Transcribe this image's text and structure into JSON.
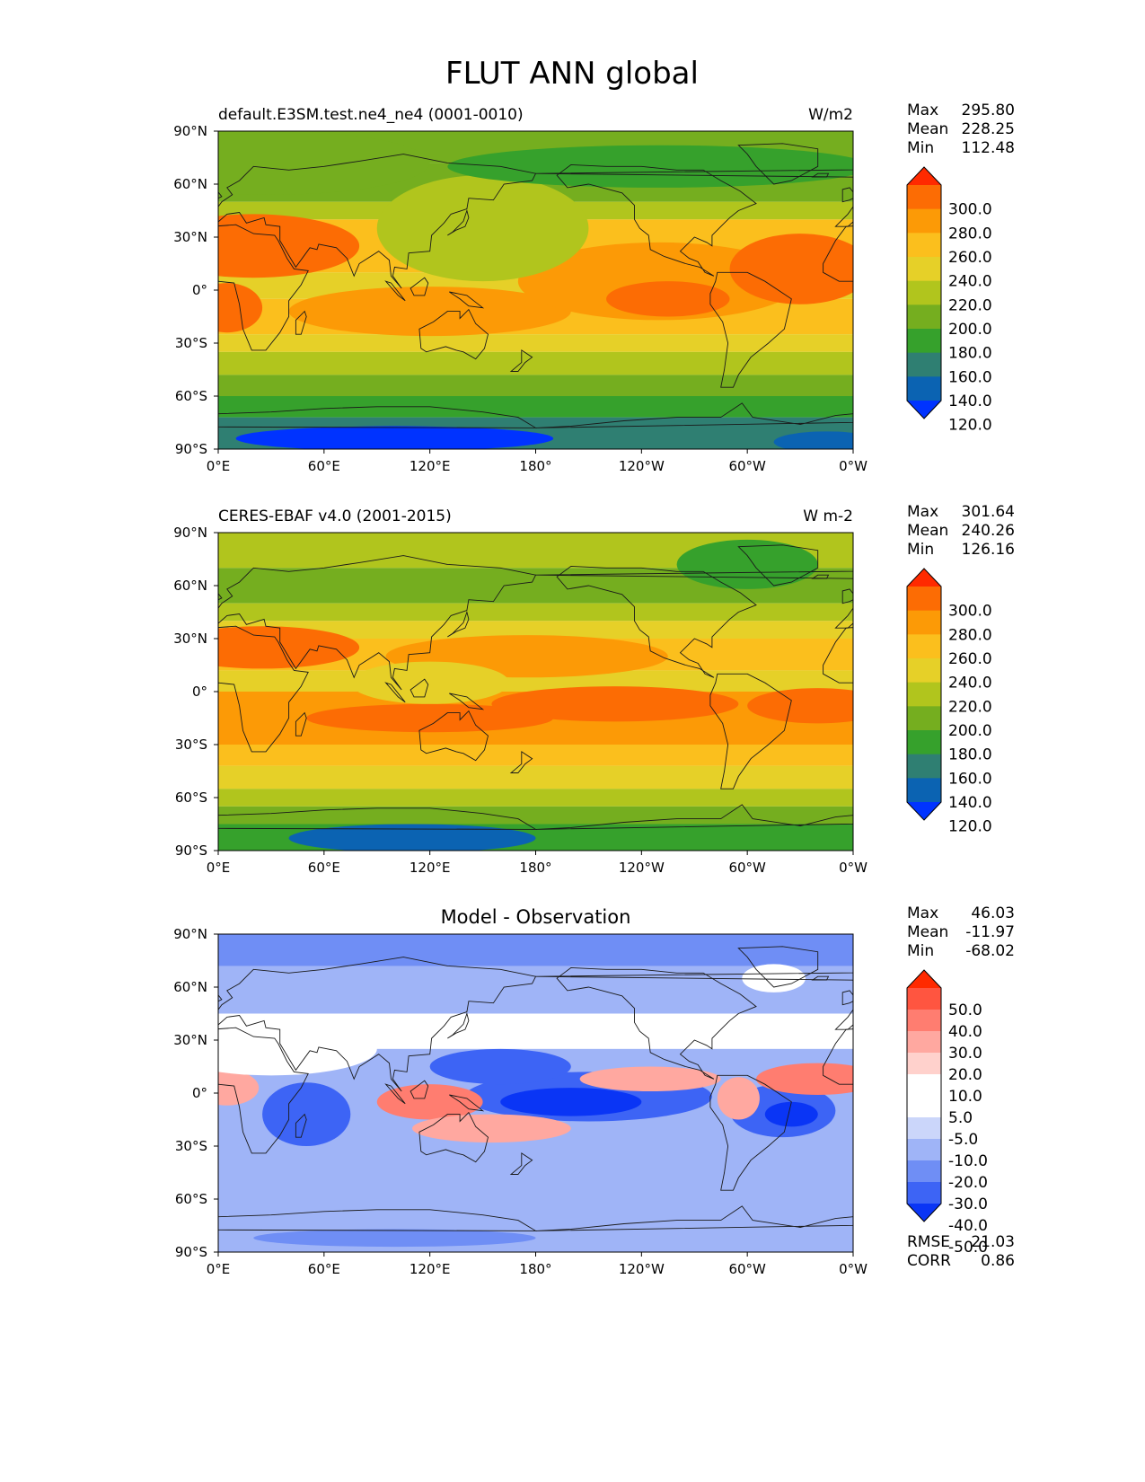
{
  "title": "FLUT ANN global",
  "colors": {
    "field_palette": [
      "#0033ff",
      "#0b63b2",
      "#2f7f72",
      "#36a12c",
      "#75ae1f",
      "#b1c51d",
      "#e6d028",
      "#fbbf1d",
      "#fc9a06",
      "#fc6c04",
      "#ff2a00"
    ],
    "diff_palette": [
      "#0a35f5",
      "#3d64f5",
      "#6f8ef5",
      "#9fb4f7",
      "#cbd6fa",
      "#ffffff",
      "#ffffff",
      "#ffd1cc",
      "#ffa8a0",
      "#ff7d70",
      "#ff5540",
      "#ff2a00"
    ],
    "coastline": "#1a1a1a"
  },
  "panels": [
    {
      "id": "test",
      "left_title": "default.E3SM.test.ne4_ne4 (0001-0010)",
      "center_title": "",
      "units": "W/m2",
      "stats": [
        {
          "label": "Max",
          "value": "295.80"
        },
        {
          "label": "Mean",
          "value": "228.25"
        },
        {
          "label": "Min",
          "value": "112.48"
        }
      ],
      "colorbar_labels": [
        "300.0",
        "280.0",
        "260.0",
        "240.0",
        "220.0",
        "200.0",
        "180.0",
        "160.0",
        "140.0",
        "120.0"
      ],
      "footer_stats": []
    },
    {
      "id": "reference",
      "left_title": "CERES-EBAF v4.0 (2001-2015)",
      "center_title": "",
      "units": "W m-2",
      "stats": [
        {
          "label": "Max",
          "value": "301.64"
        },
        {
          "label": "Mean",
          "value": "240.26"
        },
        {
          "label": "Min",
          "value": "126.16"
        }
      ],
      "colorbar_labels": [
        "300.0",
        "280.0",
        "260.0",
        "240.0",
        "220.0",
        "200.0",
        "180.0",
        "160.0",
        "140.0",
        "120.0"
      ],
      "footer_stats": []
    },
    {
      "id": "difference",
      "left_title": "",
      "center_title": "Model - Observation",
      "units": "",
      "stats": [
        {
          "label": "Max",
          "value": "46.03"
        },
        {
          "label": "Mean",
          "value": "-11.97"
        },
        {
          "label": "Min",
          "value": "-68.02"
        }
      ],
      "colorbar_labels": [
        "50.0",
        "40.0",
        "30.0",
        "20.0",
        "10.0",
        "5.0",
        "-5.0",
        "-10.0",
        "-20.0",
        "-30.0",
        "-40.0",
        "-50.0"
      ],
      "footer_stats": [
        {
          "label": "RMSE",
          "value": "21.03"
        },
        {
          "label": "CORR",
          "value": "0.86"
        }
      ]
    }
  ],
  "chart_data": [
    {
      "type": "heatmap",
      "title": "default.E3SM.test.ne4_ne4 (0001-0010)",
      "units": "W/m2",
      "x_ticks": [
        "0°E",
        "60°E",
        "120°E",
        "180°",
        "120°W",
        "60°W",
        "0°W"
      ],
      "y_ticks": [
        "90°N",
        "60°N",
        "30°N",
        "0°",
        "30°S",
        "60°S",
        "90°S"
      ],
      "xlim": [
        0,
        360
      ],
      "ylim": [
        -90,
        90
      ],
      "contour_levels": [
        120,
        140,
        160,
        180,
        200,
        220,
        240,
        260,
        280,
        300
      ],
      "stats": {
        "max": 295.8,
        "mean": 228.25,
        "min": 112.48
      }
    },
    {
      "type": "heatmap",
      "title": "CERES-EBAF v4.0 (2001-2015)",
      "units": "W m-2",
      "x_ticks": [
        "0°E",
        "60°E",
        "120°E",
        "180°",
        "120°W",
        "60°W",
        "0°W"
      ],
      "y_ticks": [
        "90°N",
        "60°N",
        "30°N",
        "0°",
        "30°S",
        "60°S",
        "90°S"
      ],
      "xlim": [
        0,
        360
      ],
      "ylim": [
        -90,
        90
      ],
      "contour_levels": [
        120,
        140,
        160,
        180,
        200,
        220,
        240,
        260,
        280,
        300
      ],
      "stats": {
        "max": 301.64,
        "mean": 240.26,
        "min": 126.16
      }
    },
    {
      "type": "heatmap",
      "title": "Model - Observation",
      "x_ticks": [
        "0°E",
        "60°E",
        "120°E",
        "180°",
        "120°W",
        "60°W",
        "0°W"
      ],
      "y_ticks": [
        "90°N",
        "60°N",
        "30°N",
        "0°",
        "30°S",
        "60°S",
        "90°S"
      ],
      "xlim": [
        0,
        360
      ],
      "ylim": [
        -90,
        90
      ],
      "contour_levels": [
        -50,
        -40,
        -30,
        -20,
        -10,
        -5,
        5,
        10,
        20,
        30,
        40,
        50
      ],
      "stats": {
        "max": 46.03,
        "mean": -11.97,
        "min": -68.02,
        "rmse": 21.03,
        "corr": 0.86
      }
    }
  ]
}
